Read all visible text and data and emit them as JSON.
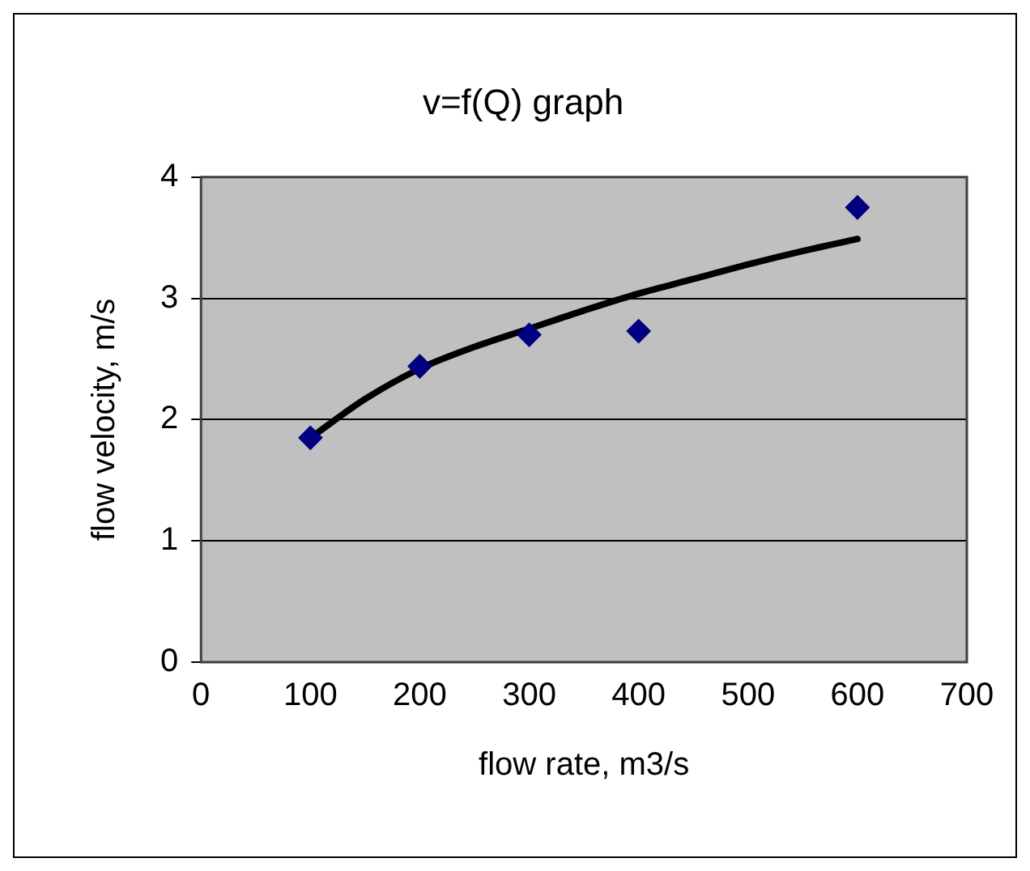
{
  "chart_data": {
    "type": "scatter",
    "title": "v=f(Q) graph",
    "xlabel": "flow rate, m3/s",
    "ylabel": "flow velocity, m/s",
    "xlim": [
      0,
      700
    ],
    "xticks": [
      0,
      100,
      200,
      300,
      400,
      500,
      600,
      700
    ],
    "ylim": [
      0,
      4
    ],
    "yticks": [
      0,
      1,
      2,
      3,
      4
    ],
    "grid": "y",
    "legend": false,
    "series": [
      {
        "type": "scatter",
        "marker": "diamond",
        "color": "#000080",
        "x": [
          100,
          200,
          300,
          400,
          600
        ],
        "values": [
          1.85,
          2.44,
          2.7,
          2.73,
          3.75
        ]
      },
      {
        "type": "line",
        "marker": "none",
        "color": "#000000",
        "x": [
          100,
          150,
          200,
          250,
          300,
          350,
          400,
          450,
          500,
          550,
          600
        ],
        "values": [
          1.85,
          2.17,
          2.42,
          2.6,
          2.75,
          2.9,
          3.04,
          3.16,
          3.28,
          3.39,
          3.49
        ]
      }
    ]
  }
}
